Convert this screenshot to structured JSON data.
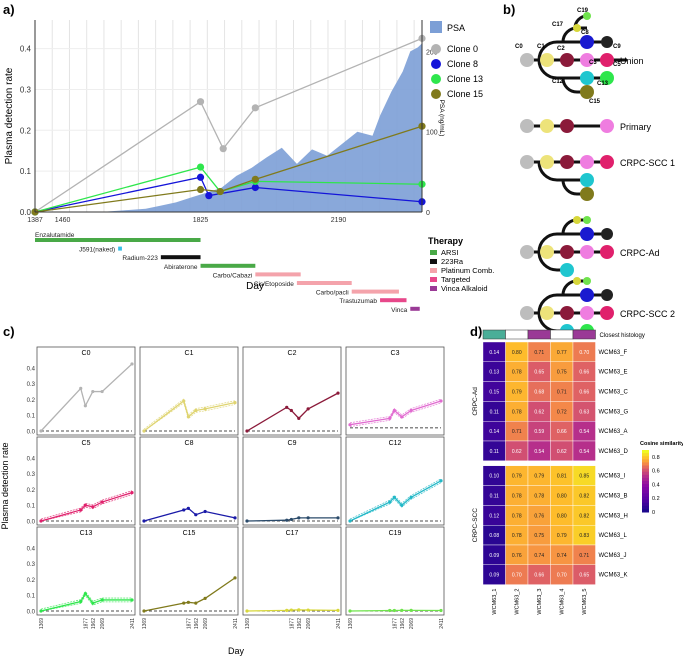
{
  "panels": {
    "a": "a)",
    "b": "b)",
    "c": "c)",
    "d": "d)"
  },
  "chart_data": [
    {
      "id": "a",
      "type": "line",
      "title": "",
      "xlabel": "Day",
      "ylabel": "Plasma detection rate",
      "ylabel_right": "PSA (ng/mL)",
      "xlim": [
        1387,
        2411
      ],
      "ylim": [
        0,
        0.47
      ],
      "xticks": [
        1387,
        1460,
        1825,
        2190
      ],
      "yticks": [
        "0.0",
        "0.1",
        "0.2",
        "0.3",
        "0.4"
      ],
      "y2ticks": [
        "0",
        "100",
        "200"
      ],
      "psa_label": "PSA",
      "psa_area": {
        "color": "#7c9fd6",
        "x": [
          1387,
          1560,
          1620,
          1680,
          1720,
          1760,
          1800,
          1840,
          1880,
          1920,
          1960,
          2000,
          2040,
          2080,
          2120,
          2160,
          2200,
          2240,
          2280,
          2300,
          2330,
          2360,
          2380,
          2400,
          2411
        ],
        "y": [
          0,
          0,
          2,
          4,
          8,
          12,
          18,
          24,
          30,
          45,
          55,
          68,
          80,
          60,
          78,
          70,
          85,
          100,
          95,
          120,
          150,
          175,
          200,
          205,
          210
        ]
      },
      "series": [
        {
          "name": "Clone 0",
          "color": "#b3b3b3",
          "x": [
            1387,
            1825,
            1885,
            1970,
            2411
          ],
          "values": [
            0,
            0.27,
            0.155,
            0.255,
            0.425
          ]
        },
        {
          "name": "Clone 8",
          "color": "#1414d9",
          "x": [
            1387,
            1825,
            1847,
            1970,
            2411
          ],
          "values": [
            0,
            0.085,
            0.04,
            0.06,
            0.025
          ]
        },
        {
          "name": "Clone 13",
          "color": "#2ee64c",
          "x": [
            1387,
            1825,
            1877,
            1970,
            2411
          ],
          "values": [
            0,
            0.11,
            0.05,
            0.075,
            0.068
          ]
        },
        {
          "name": "Clone 15",
          "color": "#807a1c",
          "x": [
            1387,
            1825,
            1877,
            1970,
            2411
          ],
          "values": [
            0,
            0.055,
            0.05,
            0.08,
            0.21
          ]
        }
      ],
      "therapy_title": "Therapy",
      "therapy_legend": [
        {
          "label": "ARSI",
          "color": "#49a947"
        },
        {
          "label": "223Ra",
          "color": "#111111"
        },
        {
          "label": "Platinum Comb.",
          "color": "#f4a3ab"
        },
        {
          "label": "Targeted",
          "color": "#e7488a"
        },
        {
          "label": "Vinca Alkaloid",
          "color": "#9a3a96"
        }
      ],
      "therapies": [
        {
          "name": "Enzalutamide",
          "start": 1387,
          "end": 1825,
          "color": "#49a947"
        },
        {
          "name": "J591(naked)",
          "start": 1607,
          "end": 1617,
          "color": "#36bde6"
        },
        {
          "name": "Radium-223",
          "start": 1720,
          "end": 1825,
          "color": "#111111"
        },
        {
          "name": "Abiraterone",
          "start": 1825,
          "end": 1970,
          "color": "#49a947"
        },
        {
          "name": "Carbo/Cabazi",
          "start": 1970,
          "end": 2090,
          "color": "#f4a3ab"
        },
        {
          "name": "Cis/Etoposide",
          "start": 2080,
          "end": 2225,
          "color": "#f4a3ab"
        },
        {
          "name": "Carbo/pacli",
          "start": 2225,
          "end": 2350,
          "color": "#f4a3ab"
        },
        {
          "name": "Trastuzumab",
          "start": 2300,
          "end": 2370,
          "color": "#e7488a"
        },
        {
          "name": "Vinca",
          "start": 2380,
          "end": 2405,
          "color": "#9a3a96"
        }
      ]
    },
    {
      "id": "c",
      "type": "line",
      "xlabel": "Day",
      "ylabel": "Plasma detection rate",
      "xticks": [
        "1369",
        "1877",
        "1962",
        "2069",
        "2411"
      ],
      "yticks": [
        "0.0",
        "0.1",
        "0.2",
        "0.3",
        "0.4"
      ],
      "ylim": [
        0,
        0.45
      ],
      "x_days": [
        1369,
        1824,
        1877,
        1962,
        2069,
        2411
      ],
      "facets": [
        {
          "name": "C0",
          "color": "#b3b3b3",
          "values": [
            0,
            0.27,
            0.16,
            0.25,
            0.25,
            0.425
          ],
          "band": false,
          "threshold": null
        },
        {
          "name": "C1",
          "color": "#dfd470",
          "values": [
            0,
            0.19,
            0.09,
            0.13,
            0.14,
            0.18
          ],
          "band": true,
          "threshold": null
        },
        {
          "name": "C2",
          "color": "#8b1a3a",
          "values": [
            0,
            0.15,
            0.13,
            0.08,
            0.14,
            0.24
          ],
          "band": false,
          "threshold": null
        },
        {
          "name": "C3",
          "color": "#e16ad0",
          "values": [
            0.04,
            0.08,
            0.13,
            0.09,
            0.13,
            0.19
          ],
          "band": true,
          "threshold": 0.02
        },
        {
          "name": "C5",
          "color": "#e0206c",
          "values": [
            0,
            0.07,
            0.1,
            0.09,
            0.12,
            0.18
          ],
          "band": true,
          "threshold": null
        },
        {
          "name": "C8",
          "color": "#1a1aa8",
          "values": [
            0,
            0.07,
            0.08,
            0.04,
            0.06,
            0.02
          ],
          "band": false,
          "threshold": null
        },
        {
          "name": "C9",
          "color": "#2a4a6a",
          "values": [
            0,
            0.005,
            0.01,
            0.02,
            0.02,
            0.02
          ],
          "band": false,
          "threshold": null
        },
        {
          "name": "C12",
          "color": "#22b8c7",
          "values": [
            0,
            0.12,
            0.15,
            0.1,
            0.15,
            0.255
          ],
          "band": true,
          "threshold": null
        },
        {
          "name": "C13",
          "color": "#2ee64c",
          "values": [
            0,
            0.06,
            0.11,
            0.05,
            0.07,
            0.07
          ],
          "band": true,
          "threshold": null
        },
        {
          "name": "C15",
          "color": "#807a1c",
          "values": [
            0,
            0.05,
            0.055,
            0.05,
            0.08,
            0.21
          ],
          "band": false,
          "threshold": null
        },
        {
          "name": "C17",
          "color": "#d7d73a",
          "values": [
            0,
            0.004,
            0.006,
            0.007,
            0.006,
            0.004
          ],
          "band": false,
          "threshold": null
        },
        {
          "name": "C19",
          "color": "#6fe34c",
          "values": [
            0,
            0.003,
            0.003,
            0.004,
            0.004,
            0.003
          ],
          "band": false,
          "threshold": null
        }
      ]
    },
    {
      "id": "d",
      "type": "heatmap",
      "header_label": "Closest histology",
      "header_colors": [
        "#4aae98",
        "#ffffff",
        "#9a3a96",
        "#ffffff",
        "#9a3a96"
      ],
      "columns": [
        "WCM63_1",
        "WCM63_2",
        "WCM63_3",
        "WCM63_4",
        "WCM63_5"
      ],
      "groups": [
        {
          "label": "CRPC-Ad",
          "rows": [
            {
              "name": "WCM63_F",
              "values": [
                0.14,
                0.8,
                0.71,
                0.77,
                0.7
              ]
            },
            {
              "name": "WCM63_E",
              "values": [
                0.13,
                0.78,
                0.65,
                0.75,
                0.66
              ]
            },
            {
              "name": "WCM63_C",
              "values": [
                0.15,
                0.79,
                0.68,
                0.71,
                0.66
              ]
            },
            {
              "name": "WCM63_G",
              "values": [
                0.11,
                0.78,
                0.62,
                0.72,
                0.63
              ]
            },
            {
              "name": "WCM63_A",
              "values": [
                0.14,
                0.71,
                0.59,
                0.66,
                0.54
              ]
            },
            {
              "name": "WCM63_D",
              "values": [
                0.11,
                0.62,
                0.54,
                0.62,
                0.54
              ]
            }
          ]
        },
        {
          "label": "CRPC-SCC",
          "rows": [
            {
              "name": "WCM63_I",
              "values": [
                0.1,
                0.79,
                0.79,
                0.81,
                0.85
              ]
            },
            {
              "name": "WCM63_B",
              "values": [
                0.11,
                0.78,
                0.78,
                0.8,
                0.82
              ]
            },
            {
              "name": "WCM63_H",
              "values": [
                0.12,
                0.78,
                0.76,
                0.8,
                0.82
              ]
            },
            {
              "name": "WCM63_L",
              "values": [
                0.08,
                0.78,
                0.75,
                0.79,
                0.83
              ]
            },
            {
              "name": "WCM63_J",
              "values": [
                0.09,
                0.76,
                0.74,
                0.74,
                0.71
              ]
            },
            {
              "name": "WCM63_K",
              "values": [
                0.09,
                0.7,
                0.66,
                0.7,
                0.65
              ]
            }
          ]
        }
      ],
      "legend_title": "Cosine similarity",
      "legend_ticks": [
        "0.8",
        "0.6",
        "0.4",
        "0.2",
        "0"
      ]
    }
  ],
  "trees": {
    "union_label": "Union",
    "union_node_labels": [
      "C0",
      "C1",
      "C2",
      "C3",
      "C5",
      "C8",
      "C9",
      "C12",
      "C13",
      "C15",
      "C17",
      "C19"
    ],
    "trees": [
      {
        "label": "Primary"
      },
      {
        "label": "CRPC-SCC 1"
      },
      {
        "label": "CRPC-Ad"
      },
      {
        "label": "CRPC-SCC 2"
      }
    ]
  }
}
